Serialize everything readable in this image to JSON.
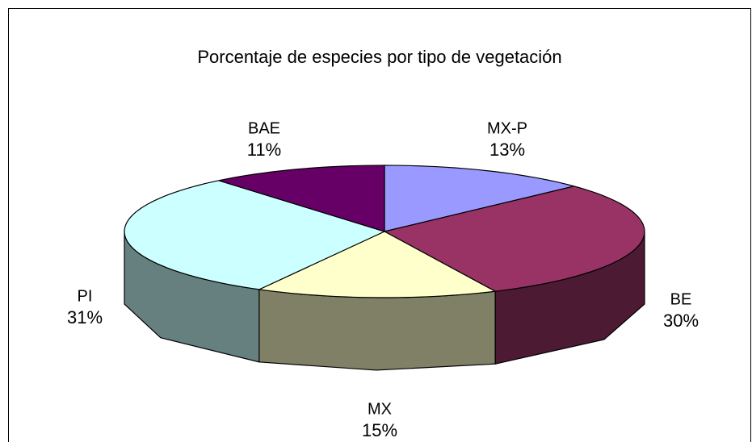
{
  "chart_data": {
    "type": "pie3d",
    "title": "Porcentaje de especies por tipo de vegetación",
    "categories": [
      "MX-P",
      "BE",
      "MX",
      "PI",
      "BAE"
    ],
    "values": [
      13,
      30,
      15,
      31,
      11
    ],
    "value_labels": [
      "13%",
      "30%",
      "15%",
      "31%",
      "11%"
    ],
    "colors": [
      "#9999ff",
      "#993366",
      "#ffffcc",
      "#ccffff",
      "#660066"
    ]
  }
}
